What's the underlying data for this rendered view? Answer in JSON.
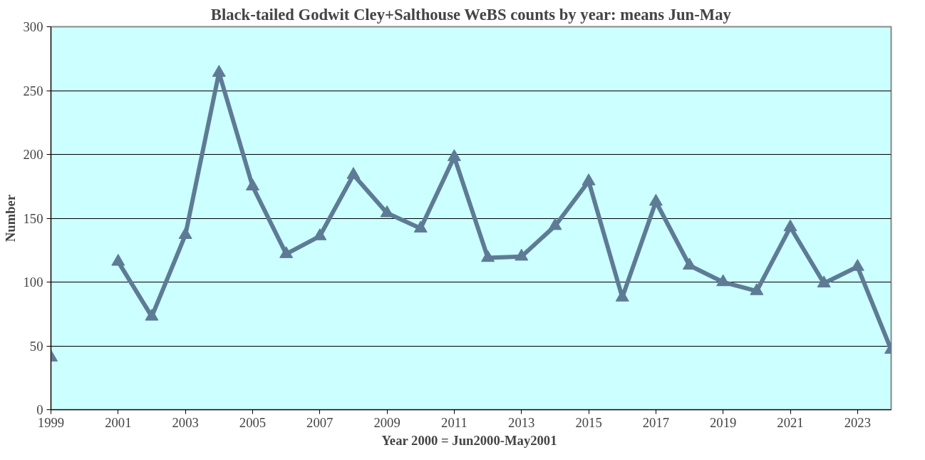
{
  "chart_data": {
    "type": "line",
    "title": "Black-tailed Godwit Cley+Salthouse WeBS counts by year: means Jun-May",
    "xlabel": "Year  2000 = Jun2000-May2001",
    "ylabel": "Number",
    "x": [
      1999,
      2000,
      2001,
      2002,
      2003,
      2004,
      2005,
      2006,
      2007,
      2008,
      2009,
      2010,
      2011,
      2012,
      2013,
      2014,
      2015,
      2016,
      2017,
      2018,
      2019,
      2020,
      2021,
      2022,
      2023,
      2024
    ],
    "series": [
      {
        "color": "#5e7b95",
        "values": [
          41,
          null,
          116,
          73,
          137,
          264,
          175,
          122,
          136,
          184,
          154,
          142,
          198,
          119,
          120,
          144,
          179,
          88,
          163,
          113,
          100,
          93,
          143,
          99,
          112,
          47
        ]
      }
    ],
    "xlim": [
      1999,
      2024
    ],
    "xticks": [
      1999,
      2001,
      2003,
      2005,
      2007,
      2009,
      2011,
      2013,
      2015,
      2017,
      2019,
      2021,
      2023
    ],
    "ylim": [
      0,
      300
    ],
    "yticks": [
      0,
      50,
      100,
      150,
      200,
      250,
      300
    ],
    "grid": "y",
    "marker": "triangle",
    "line_style": "solid"
  }
}
